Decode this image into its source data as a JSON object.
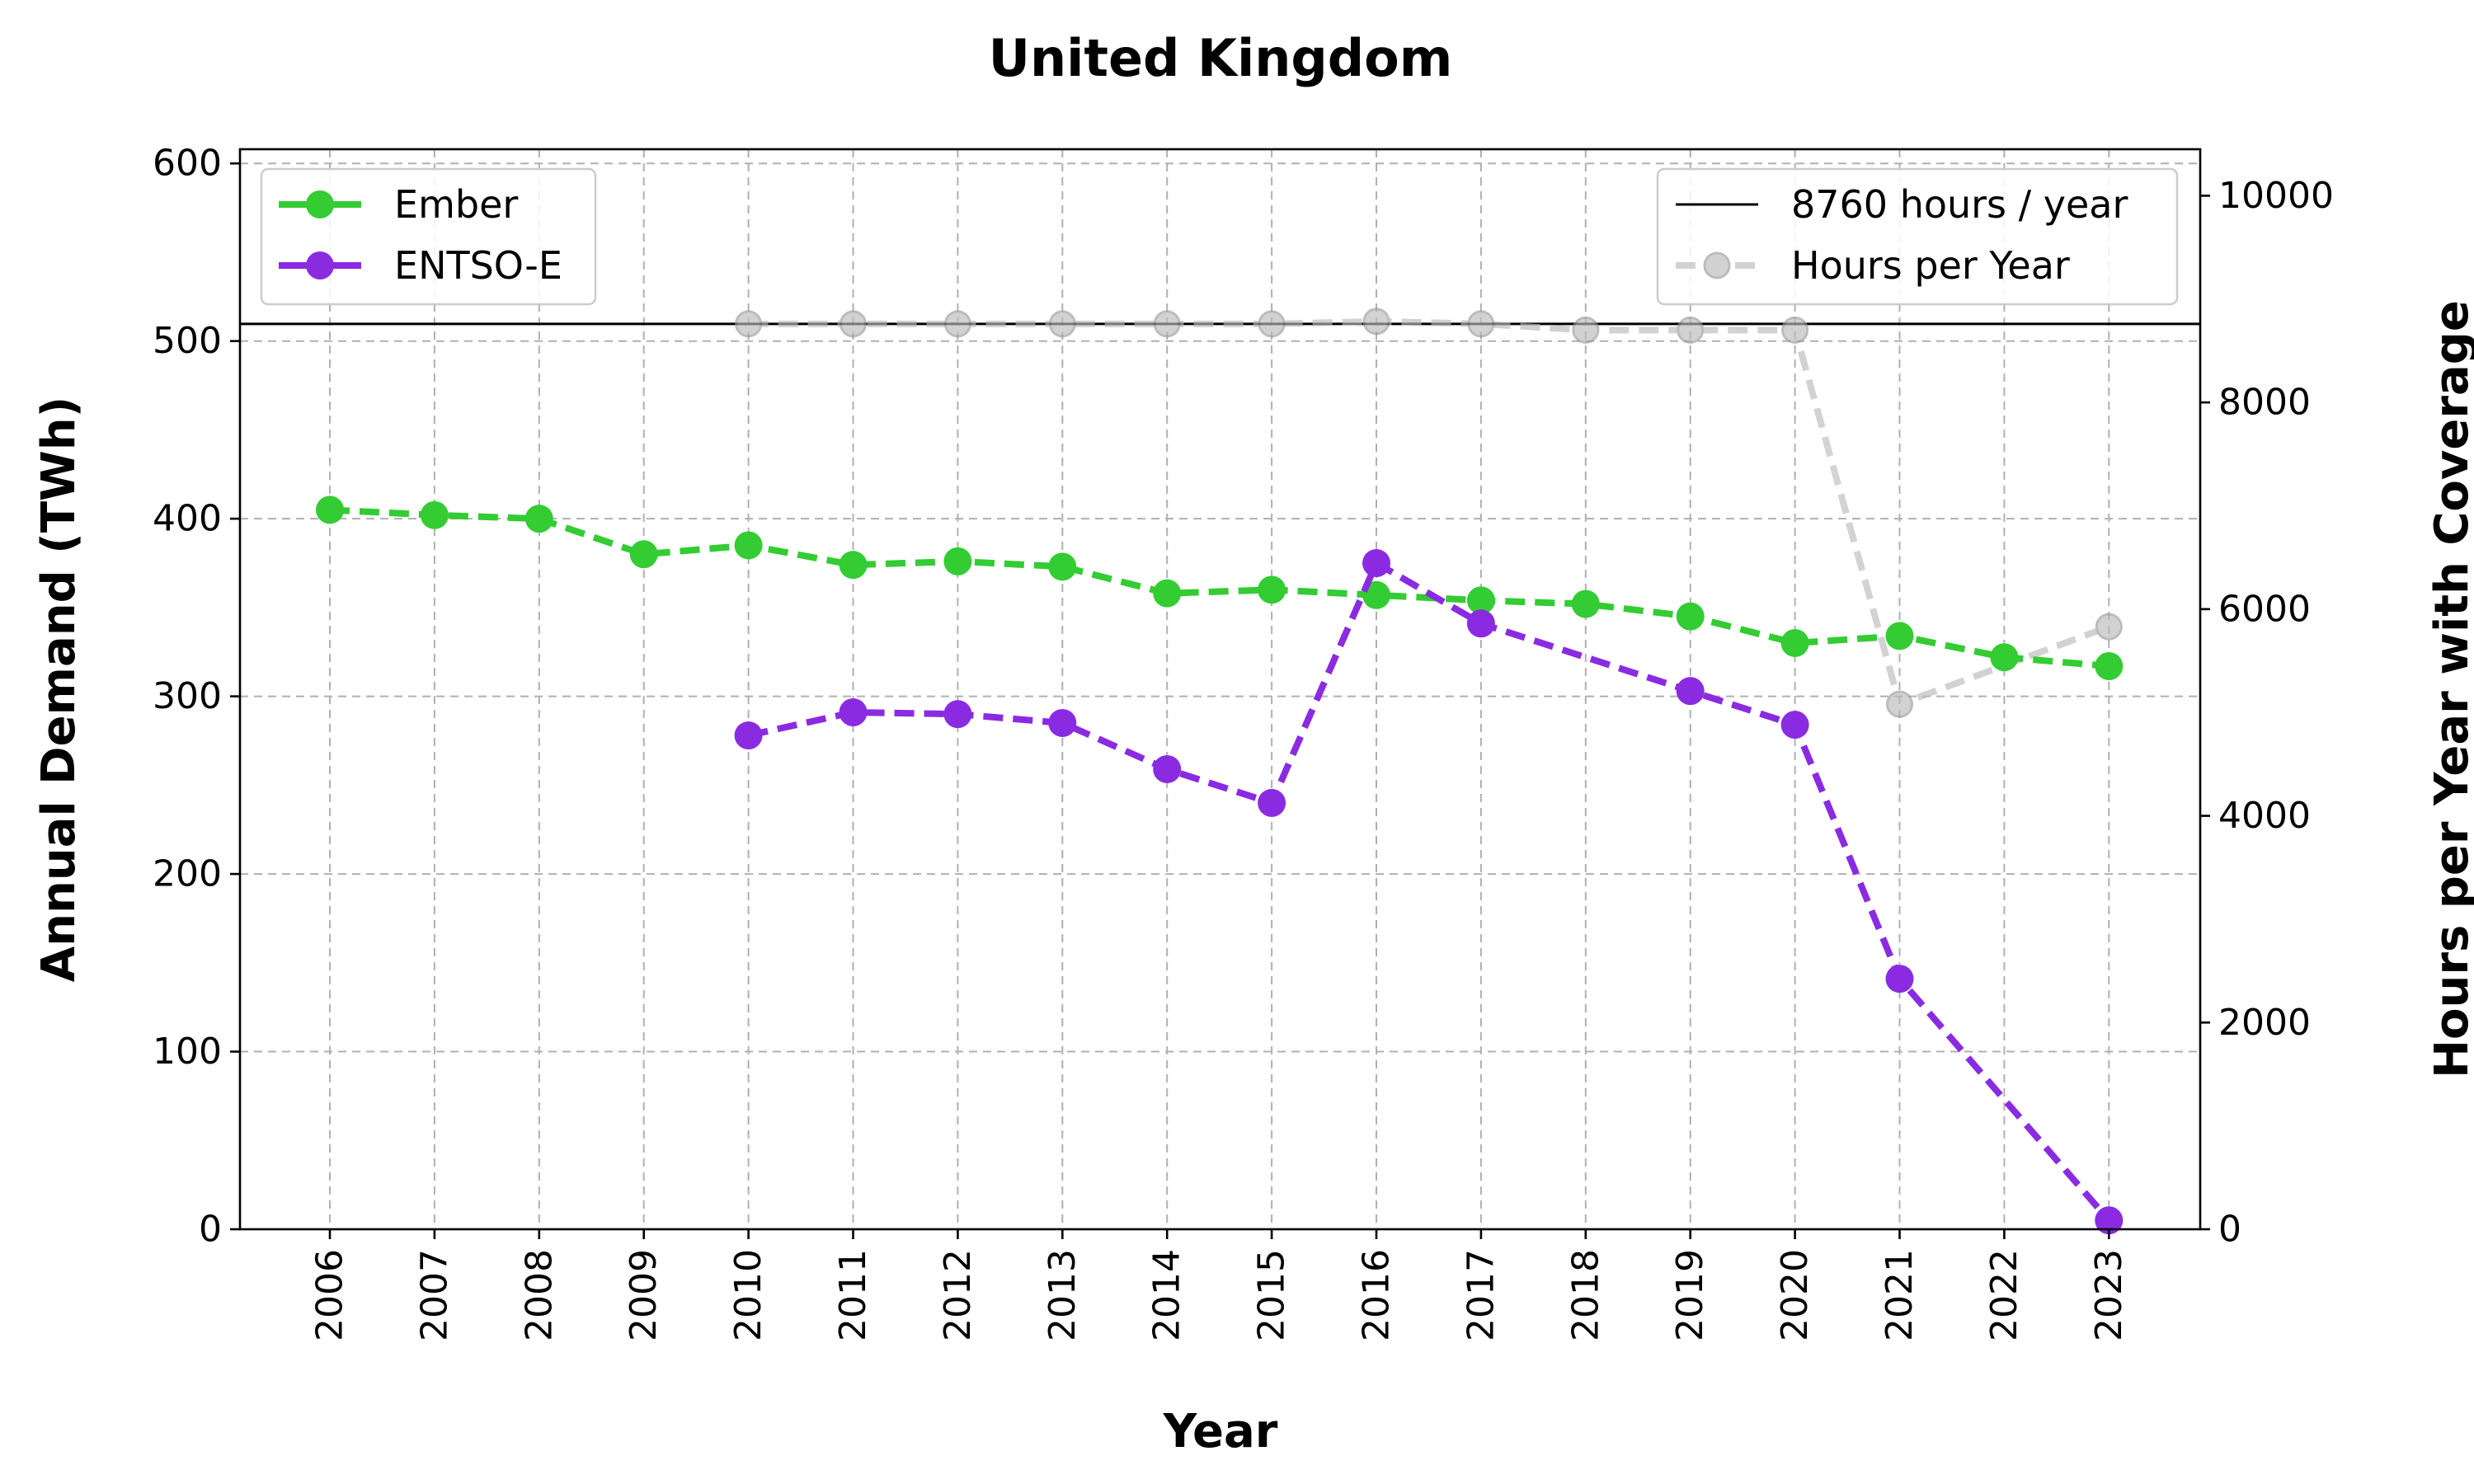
{
  "chart_data": {
    "type": "line",
    "title": "United Kingdom",
    "xlabel": "Year",
    "ylabel": "Annual Demand (TWh)",
    "y2label": "Hours per Year with Coverage",
    "grid": true,
    "categories": [
      "2006",
      "2007",
      "2008",
      "2009",
      "2010",
      "2011",
      "2012",
      "2013",
      "2014",
      "2015",
      "2016",
      "2017",
      "2018",
      "2019",
      "2020",
      "2021",
      "2022",
      "2023"
    ],
    "ylim": [
      0,
      608
    ],
    "yticks": [
      0,
      100,
      200,
      300,
      400,
      500,
      600
    ],
    "y2lim": [
      0,
      10450
    ],
    "y2ticks": [
      0,
      2000,
      4000,
      6000,
      8000,
      10000
    ],
    "series": [
      {
        "name": "Ember",
        "axis": "left",
        "color": "#33cc33",
        "style": "dashed",
        "marker": "circle",
        "values": [
          405,
          402,
          400,
          380,
          385,
          374,
          376,
          373,
          358,
          360,
          357,
          354,
          352,
          345,
          330,
          334,
          322,
          317
        ]
      },
      {
        "name": "ENTSO-E",
        "axis": "left",
        "color": "#8a2be2",
        "style": "dashed",
        "marker": "circle",
        "values": [
          null,
          null,
          null,
          null,
          278,
          291,
          290,
          285,
          259,
          240,
          375,
          341,
          null,
          303,
          284,
          141,
          null,
          5
        ]
      },
      {
        "name": "Hours per Year",
        "axis": "right",
        "color": "#bbbbbb",
        "style": "dashed",
        "marker": "circle",
        "values": [
          null,
          null,
          null,
          null,
          8760,
          8760,
          8760,
          8760,
          8760,
          8760,
          8784,
          8760,
          8700,
          8700,
          8700,
          5080,
          null,
          5830
        ]
      }
    ],
    "reference_line": {
      "label": "8760 hours / year",
      "axis": "right",
      "value": 8760,
      "color": "#000000"
    },
    "legends": [
      {
        "position": "top-left",
        "entries": [
          "Ember",
          "ENTSO-E"
        ]
      },
      {
        "position": "top-right",
        "entries": [
          "8760 hours / year",
          "Hours per Year"
        ]
      }
    ]
  }
}
